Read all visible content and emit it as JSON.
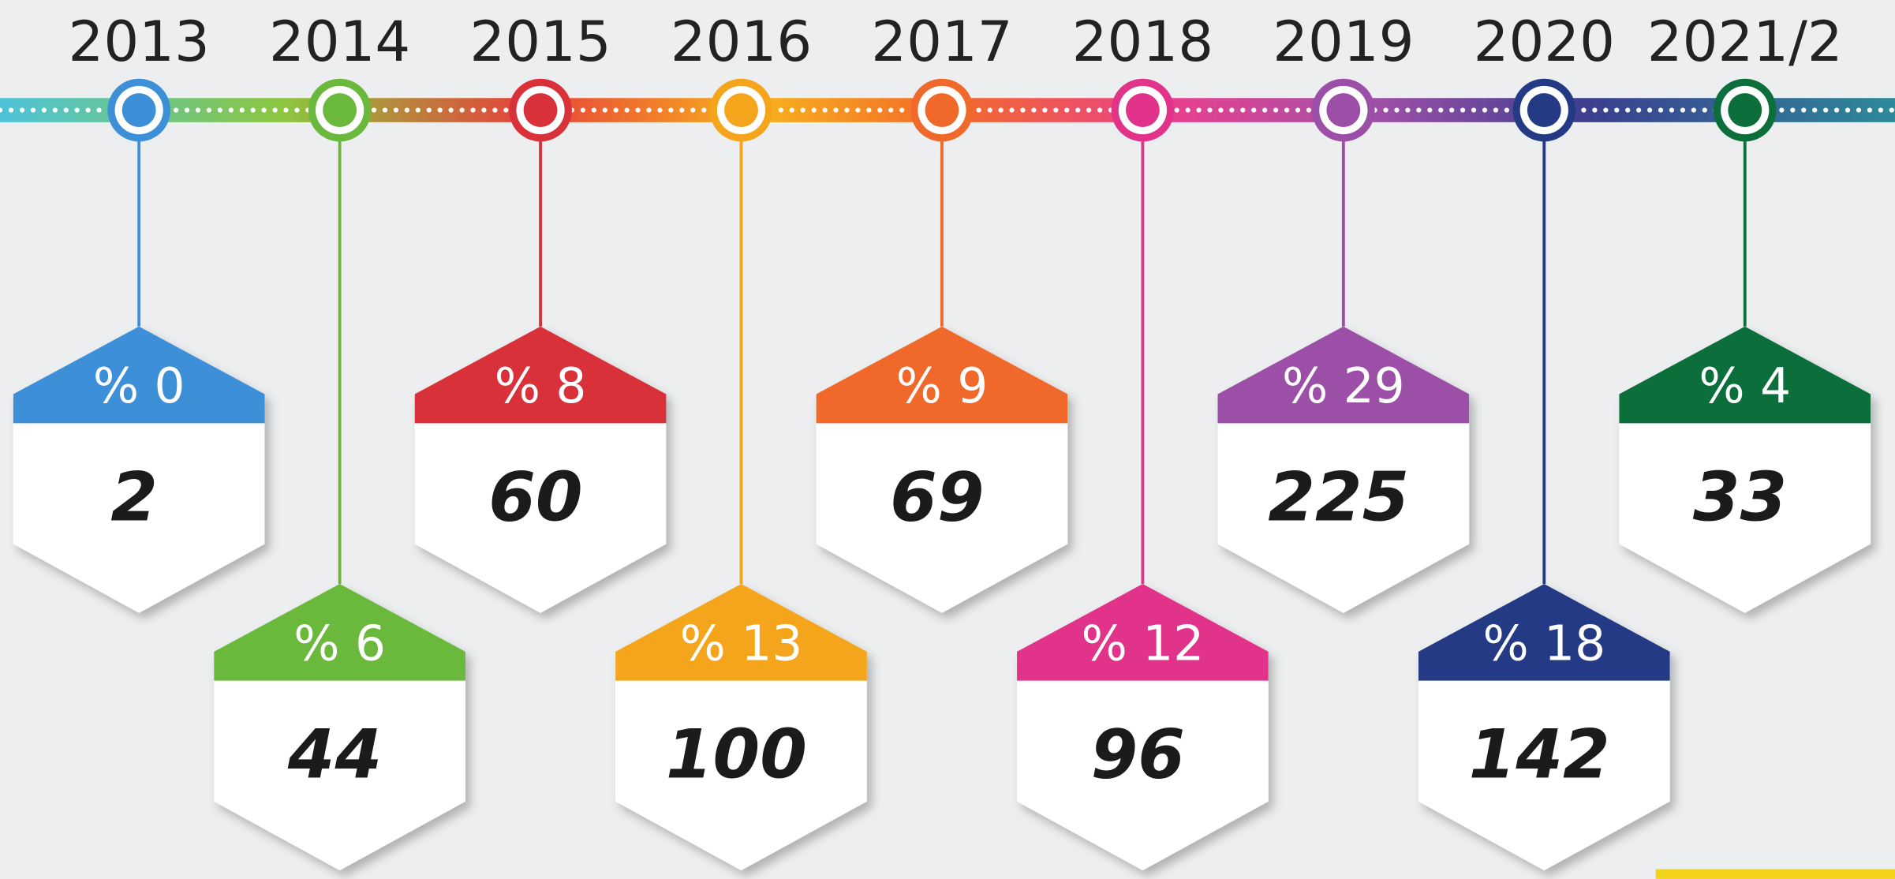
{
  "items": [
    {
      "year": "2013",
      "share": "% 0",
      "count": 2,
      "color": "#3d8fd8"
    },
    {
      "year": "2014",
      "share": "% 6",
      "count": 44,
      "color": "#6ab83c"
    },
    {
      "year": "2015",
      "share": "% 8",
      "count": 60,
      "color": "#d9313a"
    },
    {
      "year": "2016",
      "share": "% 13",
      "count": 100,
      "color": "#f5a51c"
    },
    {
      "year": "2017",
      "share": "% 9",
      "count": 69,
      "color": "#f0682a"
    },
    {
      "year": "2018",
      "share": "% 12",
      "count": 96,
      "color": "#e2338a"
    },
    {
      "year": "2019",
      "share": "% 29",
      "count": 225,
      "color": "#9b4fa6"
    },
    {
      "year": "2020",
      "share": "% 18",
      "count": 142,
      "color": "#253a85"
    },
    {
      "year": "2021/2",
      "share": "% 4",
      "count": 33,
      "color": "#0c6e3a"
    }
  ]
}
